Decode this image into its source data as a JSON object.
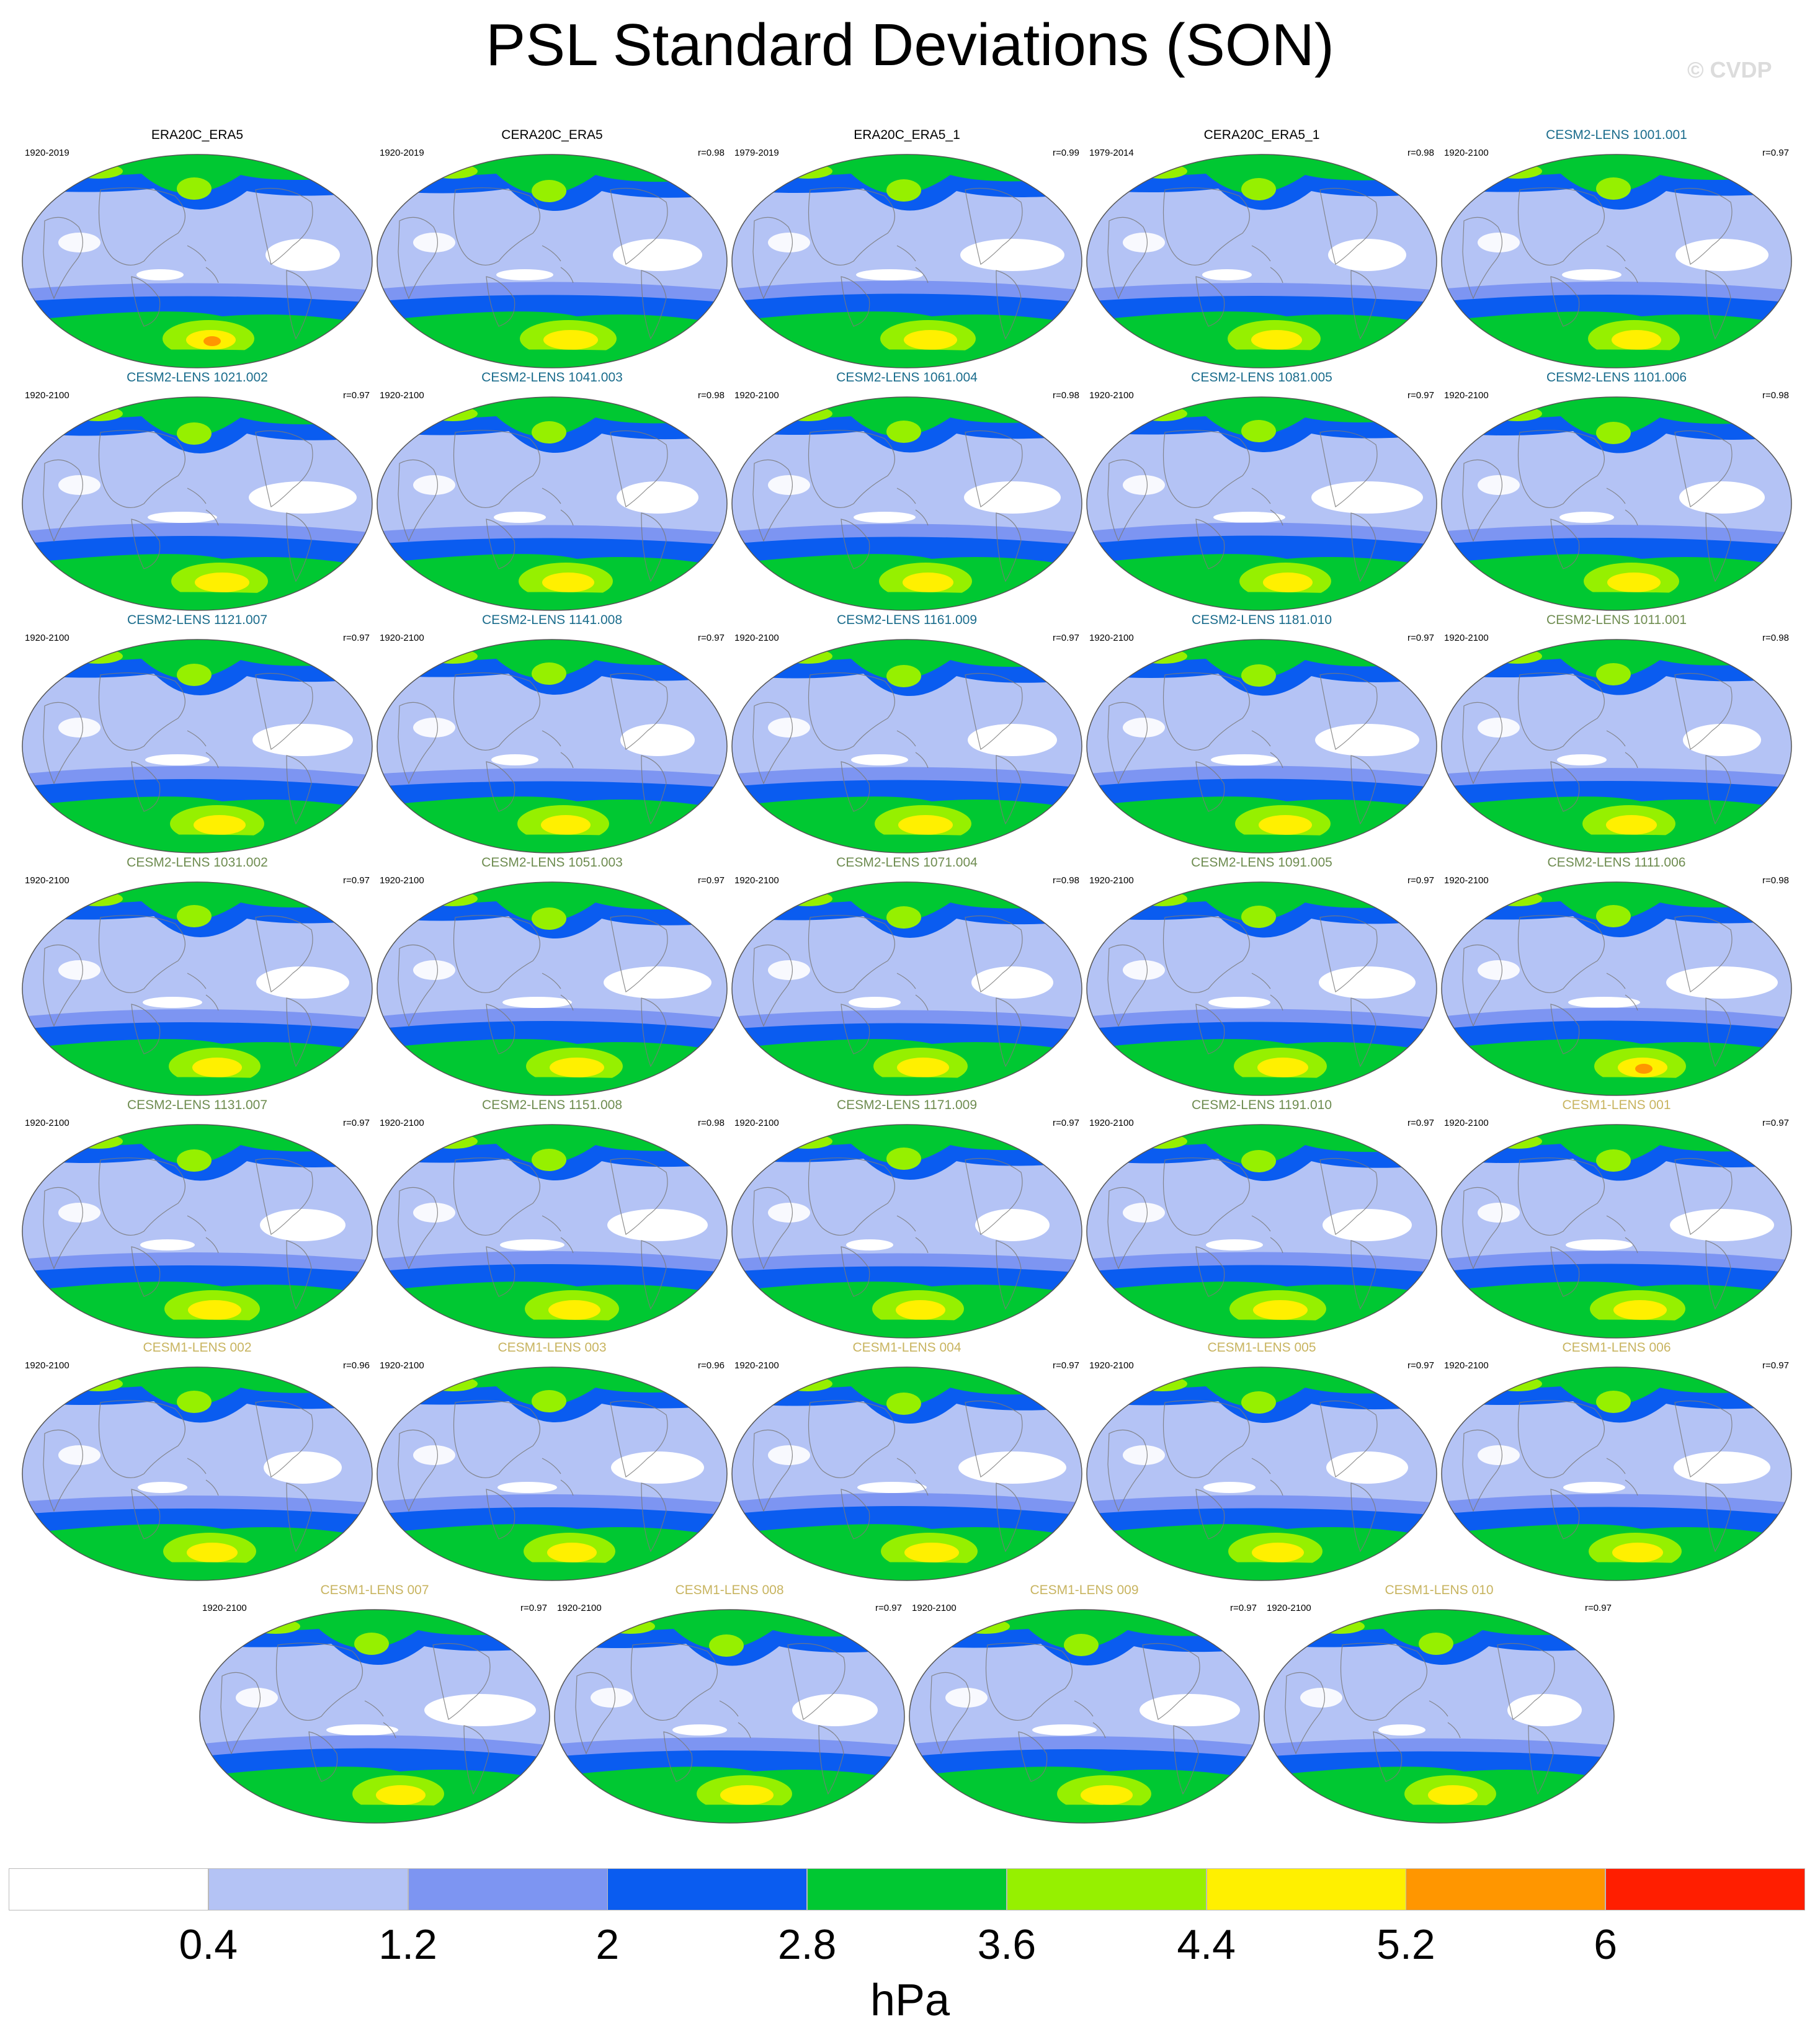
{
  "title": "PSL Standard Deviations (SON)",
  "watermark": "© CVDP",
  "colors": {
    "obs_title": "#000000",
    "cesm2_first": "#1a6c8c",
    "cesm2_second": "#6e8c50",
    "cesm1": "#c8b460",
    "levels": [
      "#ffffff",
      "#b4c3f5",
      "#7d95f2",
      "#0a5cf0",
      "#00c832",
      "#96f000",
      "#fff000",
      "#ff9600",
      "#ff1e00"
    ]
  },
  "panels": [
    {
      "title": "ERA20C_ERA5",
      "period": "1920-2019",
      "r": "",
      "group": "obs"
    },
    {
      "title": "CERA20C_ERA5",
      "period": "1920-2019",
      "r": "r=0.98",
      "group": "obs"
    },
    {
      "title": "ERA20C_ERA5_1",
      "period": "1979-2019",
      "r": "r=0.99",
      "group": "obs"
    },
    {
      "title": "CERA20C_ERA5_1",
      "period": "1979-2014",
      "r": "r=0.98",
      "group": "obs"
    },
    {
      "title": "CESM2-LENS 1001.001",
      "period": "1920-2100",
      "r": "r=0.97",
      "group": "cesm2a"
    },
    {
      "title": "CESM2-LENS 1021.002",
      "period": "1920-2100",
      "r": "r=0.97",
      "group": "cesm2a"
    },
    {
      "title": "CESM2-LENS 1041.003",
      "period": "1920-2100",
      "r": "r=0.98",
      "group": "cesm2a"
    },
    {
      "title": "CESM2-LENS 1061.004",
      "period": "1920-2100",
      "r": "r=0.98",
      "group": "cesm2a"
    },
    {
      "title": "CESM2-LENS 1081.005",
      "period": "1920-2100",
      "r": "r=0.97",
      "group": "cesm2a"
    },
    {
      "title": "CESM2-LENS 1101.006",
      "period": "1920-2100",
      "r": "r=0.98",
      "group": "cesm2a"
    },
    {
      "title": "CESM2-LENS 1121.007",
      "period": "1920-2100",
      "r": "r=0.97",
      "group": "cesm2a"
    },
    {
      "title": "CESM2-LENS 1141.008",
      "period": "1920-2100",
      "r": "r=0.97",
      "group": "cesm2a"
    },
    {
      "title": "CESM2-LENS 1161.009",
      "period": "1920-2100",
      "r": "r=0.97",
      "group": "cesm2a"
    },
    {
      "title": "CESM2-LENS 1181.010",
      "period": "1920-2100",
      "r": "r=0.97",
      "group": "cesm2a"
    },
    {
      "title": "CESM2-LENS 1011.001",
      "period": "1920-2100",
      "r": "r=0.98",
      "group": "cesm2b"
    },
    {
      "title": "CESM2-LENS 1031.002",
      "period": "1920-2100",
      "r": "r=0.97",
      "group": "cesm2b"
    },
    {
      "title": "CESM2-LENS 1051.003",
      "period": "1920-2100",
      "r": "r=0.97",
      "group": "cesm2b"
    },
    {
      "title": "CESM2-LENS 1071.004",
      "period": "1920-2100",
      "r": "r=0.98",
      "group": "cesm2b"
    },
    {
      "title": "CESM2-LENS 1091.005",
      "period": "1920-2100",
      "r": "r=0.97",
      "group": "cesm2b"
    },
    {
      "title": "CESM2-LENS 1111.006",
      "period": "1920-2100",
      "r": "r=0.98",
      "group": "cesm2b"
    },
    {
      "title": "CESM2-LENS 1131.007",
      "period": "1920-2100",
      "r": "r=0.97",
      "group": "cesm2b"
    },
    {
      "title": "CESM2-LENS 1151.008",
      "period": "1920-2100",
      "r": "r=0.98",
      "group": "cesm2b"
    },
    {
      "title": "CESM2-LENS 1171.009",
      "period": "1920-2100",
      "r": "r=0.97",
      "group": "cesm2b"
    },
    {
      "title": "CESM2-LENS 1191.010",
      "period": "1920-2100",
      "r": "r=0.97",
      "group": "cesm2b"
    },
    {
      "title": "CESM1-LENS 001",
      "period": "1920-2100",
      "r": "r=0.97",
      "group": "cesm1"
    },
    {
      "title": "CESM1-LENS 002",
      "period": "1920-2100",
      "r": "r=0.96",
      "group": "cesm1"
    },
    {
      "title": "CESM1-LENS 003",
      "period": "1920-2100",
      "r": "r=0.96",
      "group": "cesm1"
    },
    {
      "title": "CESM1-LENS 004",
      "period": "1920-2100",
      "r": "r=0.97",
      "group": "cesm1"
    },
    {
      "title": "CESM1-LENS 005",
      "period": "1920-2100",
      "r": "r=0.97",
      "group": "cesm1"
    },
    {
      "title": "CESM1-LENS 006",
      "period": "1920-2100",
      "r": "r=0.97",
      "group": "cesm1"
    },
    {
      "title": "CESM1-LENS 007",
      "period": "1920-2100",
      "r": "r=0.97",
      "group": "cesm1"
    },
    {
      "title": "CESM1-LENS 008",
      "period": "1920-2100",
      "r": "r=0.97",
      "group": "cesm1"
    },
    {
      "title": "CESM1-LENS 009",
      "period": "1920-2100",
      "r": "r=0.97",
      "group": "cesm1"
    },
    {
      "title": "CESM1-LENS 010",
      "period": "1920-2100",
      "r": "r=0.97",
      "group": "cesm1"
    }
  ],
  "colorbar": {
    "labels": [
      "0.4",
      "1.2",
      "2",
      "2.8",
      "3.6",
      "4.4",
      "5.2",
      "6"
    ],
    "units": "hPa"
  }
}
